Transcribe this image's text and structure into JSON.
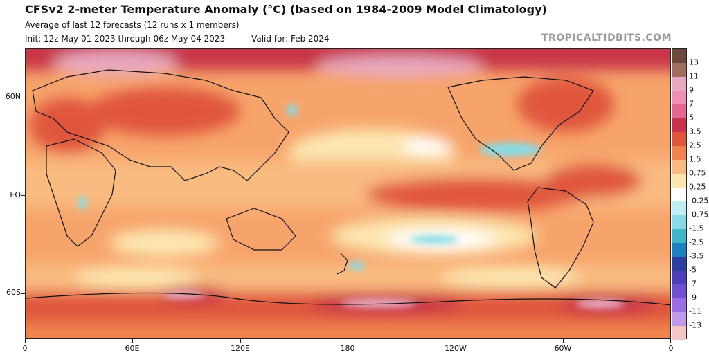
{
  "header": {
    "title": "CFSv2 2-meter Temperature Anomaly (°C) (based on 1984-2009 Model Climatology)",
    "subtitle": "Average of last 12 forecasts (12 runs x 1 members)",
    "init": "Init: 12z May 01 2023 through 06z May 04 2023",
    "valid": "Valid for: Feb 2024",
    "brand": "TROPICALTIDBITS.COM"
  },
  "map": {
    "lat_labels": [
      "60N",
      "EQ",
      "60S"
    ],
    "lon_labels": [
      "0",
      "60E",
      "120E",
      "180",
      "120W",
      "60W",
      "0"
    ]
  },
  "colorbar": {
    "labels": [
      "13",
      "11",
      "9",
      "7",
      "5",
      "3.5",
      "2.5",
      "1.5",
      "0.75",
      "0.25",
      "-0.25",
      "-0.75",
      "-1.5",
      "-2.5",
      "-3.5",
      "-5",
      "-7",
      "-9",
      "-11",
      "-13"
    ],
    "colors": [
      "#6b4a3c",
      "#a06e5e",
      "#e7a9c0",
      "#f08fb6",
      "#e26890",
      "#c8344a",
      "#e0563c",
      "#f08450",
      "#f9bb80",
      "#fce7b1",
      "#ffffff",
      "#bfeef5",
      "#88dbe6",
      "#3fb7c8",
      "#1f7fc0",
      "#2c3f9e",
      "#4c3fb8",
      "#7050d0",
      "#9a6ee0",
      "#c09aea",
      "#f6c6c6"
    ]
  }
}
